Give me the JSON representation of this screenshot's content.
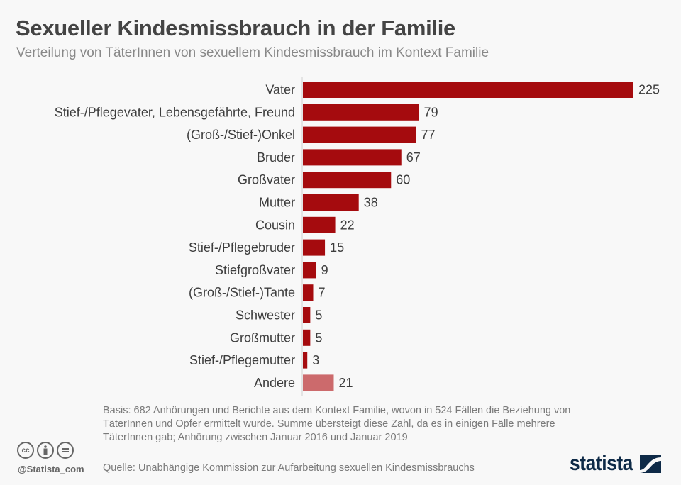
{
  "header": {
    "title": "Sexueller Kindesmissbrauch in der Familie",
    "subtitle": "Verteilung von TäterInnen von sexuellem Kindesmissbrauch im Kontext Familie"
  },
  "chart_data": {
    "type": "bar",
    "orientation": "horizontal",
    "title": "Sexueller Kindesmissbrauch in der Familie",
    "subtitle": "Verteilung von TäterInnen von sexuellem Kindesmissbrauch im Kontext Familie",
    "categories": [
      "Vater",
      "Stief-/Pflegevater, Lebensgefährte, Freund",
      "(Groß-/Stief-)Onkel",
      "Bruder",
      "Großvater",
      "Mutter",
      "Cousin",
      "Stief-/Pflegebruder",
      "Stiefgroßvater",
      "(Groß-/Stief-)Tante",
      "Schwester",
      "Großmutter",
      "Stief-/Pflegemutter",
      "Andere"
    ],
    "values": [
      225,
      79,
      77,
      67,
      60,
      38,
      22,
      15,
      9,
      7,
      5,
      5,
      3,
      21
    ],
    "highlight": [
      false,
      false,
      false,
      false,
      false,
      false,
      false,
      false,
      false,
      false,
      false,
      false,
      false,
      true
    ],
    "xlabel": "",
    "ylabel": "",
    "xlim": [
      0,
      225
    ],
    "grid": false,
    "data_labels": true,
    "colors": {
      "primary": "#a50b0e",
      "secondary": "#cc6a6c"
    }
  },
  "footer": {
    "note": "Basis: 682 Anhörungen und Berichte aus dem Kontext Familie, wovon in 524 Fällen die Beziehung von TäterInnen und Opfer ermittelt wurde. Summe übersteigt diese Zahl, da es in einigen Fälle mehrere TäterInnen gab; Anhörung zwischen Januar 2016 und Januar 2019",
    "source": "Quelle: Unabhängige Kommission zur Aufarbeitung sexuellen Kindesmissbrauchs",
    "handle": "@Statista_com",
    "cc_icons": [
      "cc-icon",
      "attribution-icon",
      "no-derivatives-icon"
    ],
    "logo": "statista"
  }
}
